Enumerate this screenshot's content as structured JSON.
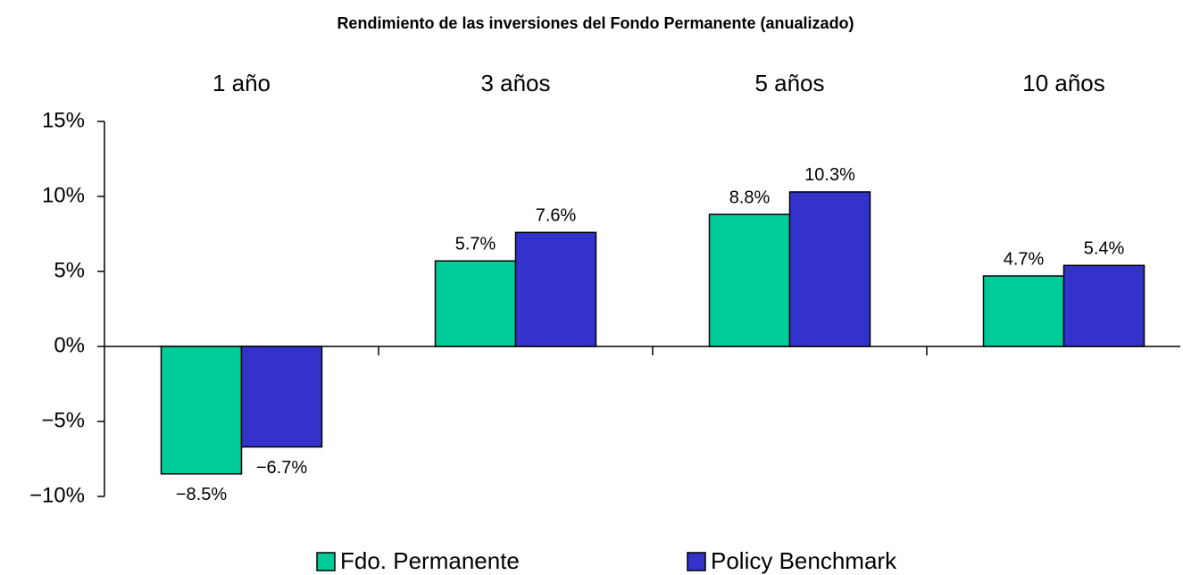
{
  "chart_data": {
    "type": "bar",
    "title": "Rendimiento de las inversiones del Fondo Permanente (anualizado)",
    "categories": [
      "1 año",
      "3 años",
      "5 años",
      "10 años"
    ],
    "series": [
      {
        "name": "Fdo. Permanente",
        "color": "#00cc99",
        "values": [
          -8.5,
          5.7,
          8.8,
          4.7
        ],
        "value_labels": [
          "−8.5%",
          "5.7%",
          "8.8%",
          "4.7%"
        ]
      },
      {
        "name": "Policy Benchmark",
        "color": "#3333cc",
        "values": [
          -6.7,
          7.6,
          10.3,
          5.4
        ],
        "value_labels": [
          "−6.7%",
          "7.6%",
          "10.3%",
          "5.4%"
        ]
      }
    ],
    "ylim": [
      -10,
      15
    ],
    "yticks": [
      {
        "value": -10,
        "label": "−10%"
      },
      {
        "value": -5,
        "label": "−5%"
      },
      {
        "value": 0,
        "label": "0%"
      },
      {
        "value": 5,
        "label": "5%"
      },
      {
        "value": 10,
        "label": "10%"
      },
      {
        "value": 15,
        "label": "15%"
      }
    ],
    "legend": "bottom"
  }
}
